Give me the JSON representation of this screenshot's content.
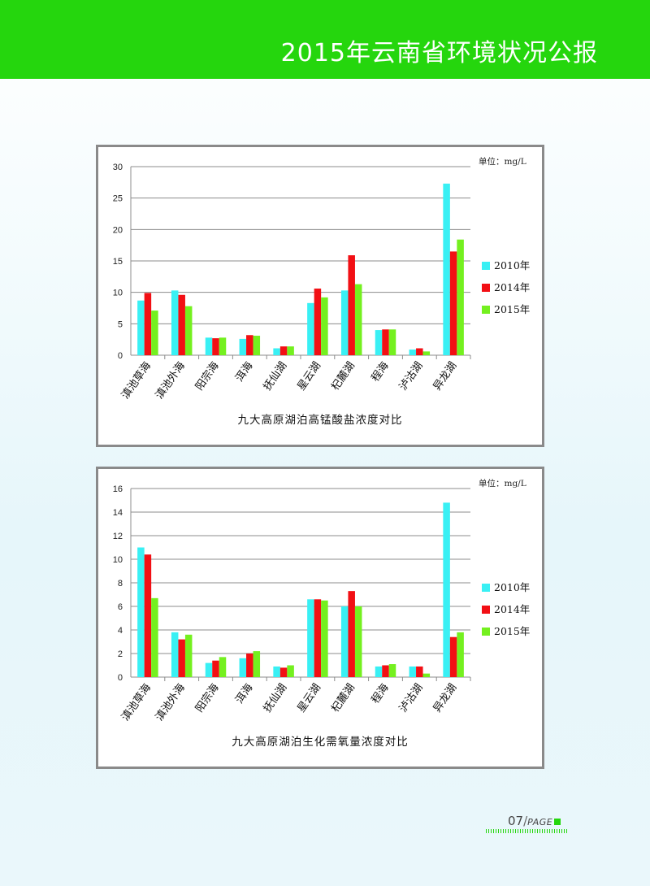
{
  "header": {
    "title": "2015年云南省环境状况公报"
  },
  "footer": {
    "page_number": "07",
    "page_word": "PAGE"
  },
  "colors": {
    "s2010": "#39f0f4",
    "s2014": "#f20f14",
    "s2015": "#74f01f",
    "header_bg": "#25d60d"
  },
  "chart_data": [
    {
      "type": "bar",
      "title": "九大高原湖泊高锰酸盐浓度对比",
      "unit": "单位：mg/L",
      "categories": [
        "滇池草海",
        "滇池外海",
        "阳宗海",
        "洱海",
        "抚仙湖",
        "星云湖",
        "杞麓湖",
        "程海",
        "泸沽湖",
        "异龙湖"
      ],
      "series": [
        {
          "name": "2010年",
          "values": [
            8.7,
            10.3,
            2.8,
            2.6,
            1.1,
            8.3,
            10.3,
            4.0,
            0.9,
            27.3
          ]
        },
        {
          "name": "2014年",
          "values": [
            9.9,
            9.6,
            2.7,
            3.2,
            1.4,
            10.6,
            15.9,
            4.1,
            1.1,
            16.5
          ]
        },
        {
          "name": "2015年",
          "values": [
            7.1,
            7.8,
            2.8,
            3.1,
            1.4,
            9.2,
            11.3,
            4.1,
            0.6,
            18.4
          ]
        }
      ],
      "ylim": [
        0,
        30
      ],
      "yticks": [
        "0",
        "5",
        "10",
        "15",
        "20",
        "25",
        "30"
      ],
      "ytick_values": [
        0,
        5,
        10,
        15,
        20,
        25,
        30
      ],
      "grid": true,
      "legend": "right"
    },
    {
      "type": "bar",
      "title": "九大高原湖泊生化需氧量浓度对比",
      "unit": "单位：mg/L",
      "categories": [
        "滇池草海",
        "滇池外海",
        "阳宗海",
        "洱海",
        "抚仙湖",
        "星云湖",
        "杞麓湖",
        "程海",
        "泸沽湖",
        "异龙湖"
      ],
      "series": [
        {
          "name": "2010年",
          "values": [
            11.0,
            3.8,
            1.2,
            1.6,
            0.9,
            6.6,
            6.0,
            0.9,
            0.9,
            14.8
          ]
        },
        {
          "name": "2014年",
          "values": [
            10.4,
            3.2,
            1.4,
            2.0,
            0.8,
            6.6,
            7.3,
            1.0,
            0.9,
            3.4
          ]
        },
        {
          "name": "2015年",
          "values": [
            6.7,
            3.6,
            1.7,
            2.2,
            1.0,
            6.5,
            6.0,
            1.1,
            0.3,
            3.8
          ]
        }
      ],
      "ylim": [
        0,
        16
      ],
      "yticks": [
        "0",
        "2",
        "4",
        "6",
        "8",
        "10",
        "12",
        "14",
        "16"
      ],
      "ytick_values": [
        0,
        2,
        4,
        6,
        8,
        10,
        12,
        14,
        16
      ],
      "grid": true,
      "legend": "right"
    }
  ]
}
